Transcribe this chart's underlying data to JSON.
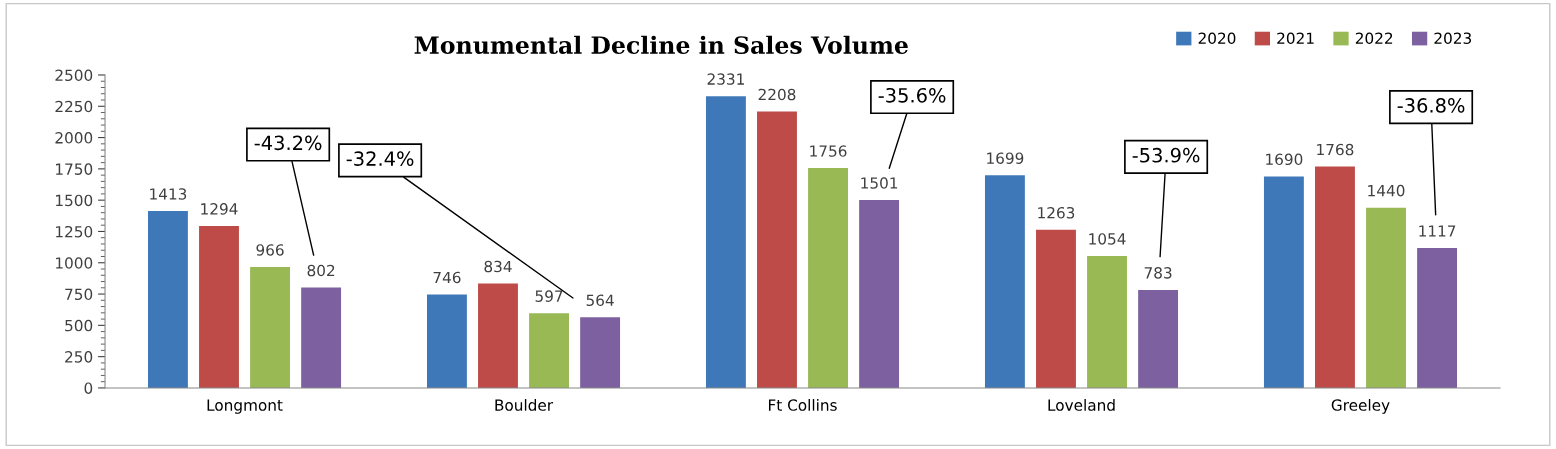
{
  "chart_data": {
    "type": "bar",
    "title": "Monumental Decline in Sales Volume",
    "categories": [
      "Longmont",
      "Boulder",
      "Ft Collins",
      "Loveland",
      "Greeley"
    ],
    "series": [
      {
        "name": "2020",
        "color": "#3f78b9",
        "values": [
          1413,
          746,
          2331,
          1699,
          1690
        ]
      },
      {
        "name": "2021",
        "color": "#be4b48",
        "values": [
          1294,
          834,
          2208,
          1263,
          1768
        ]
      },
      {
        "name": "2022",
        "color": "#98b954",
        "values": [
          966,
          597,
          1756,
          1054,
          1440
        ]
      },
      {
        "name": "2023",
        "color": "#7d60a0",
        "values": [
          802,
          564,
          1501,
          783,
          1117
        ]
      }
    ],
    "ylim": [
      0,
      2500
    ],
    "yticks": [
      0,
      250,
      500,
      750,
      1000,
      1250,
      1500,
      1750,
      2000,
      2250,
      2500
    ],
    "data_labels": true,
    "grid": false,
    "legend": "top right",
    "annotations": [
      "-43.2%",
      "-32.4%",
      "-35.6%",
      "-53.9%",
      "-36.8%"
    ]
  }
}
